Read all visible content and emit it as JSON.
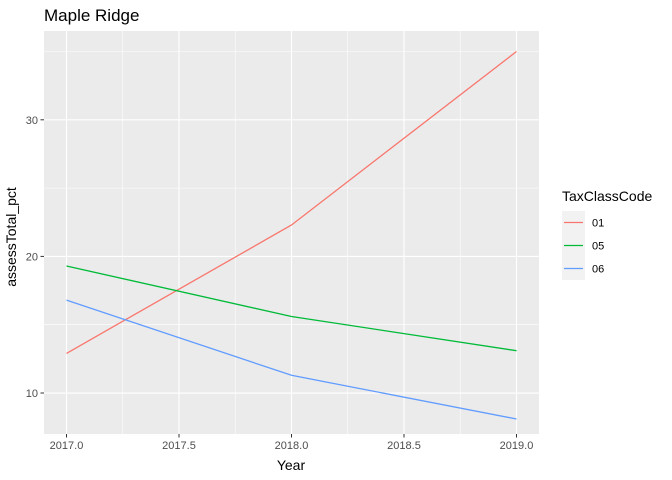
{
  "chart_data": {
    "type": "line",
    "title": "Maple Ridge",
    "xlabel": "Year",
    "ylabel": "assessTotal_pct",
    "xlim": [
      2016.9,
      2019.1
    ],
    "ylim": [
      7.0,
      36.5
    ],
    "x_ticks": [
      2017.0,
      2017.5,
      2018.0,
      2018.5,
      2019.0
    ],
    "x_tick_labels": [
      "2017.0",
      "2017.5",
      "2018.0",
      "2018.5",
      "2019.0"
    ],
    "y_ticks": [
      10,
      20,
      30
    ],
    "y_tick_labels": [
      "10",
      "20",
      "30"
    ],
    "grid": true,
    "legend": {
      "title": "TaxClassCode",
      "position": "right"
    },
    "series": [
      {
        "name": "01",
        "color": "#F8766D",
        "x": [
          2017,
          2018,
          2019
        ],
        "y": [
          12.9,
          22.3,
          35.0
        ]
      },
      {
        "name": "05",
        "color": "#00BA38",
        "x": [
          2017,
          2018,
          2019
        ],
        "y": [
          19.3,
          15.6,
          13.1
        ]
      },
      {
        "name": "06",
        "color": "#619CFF",
        "x": [
          2017,
          2018,
          2019
        ],
        "y": [
          16.8,
          11.3,
          8.1
        ]
      }
    ]
  }
}
